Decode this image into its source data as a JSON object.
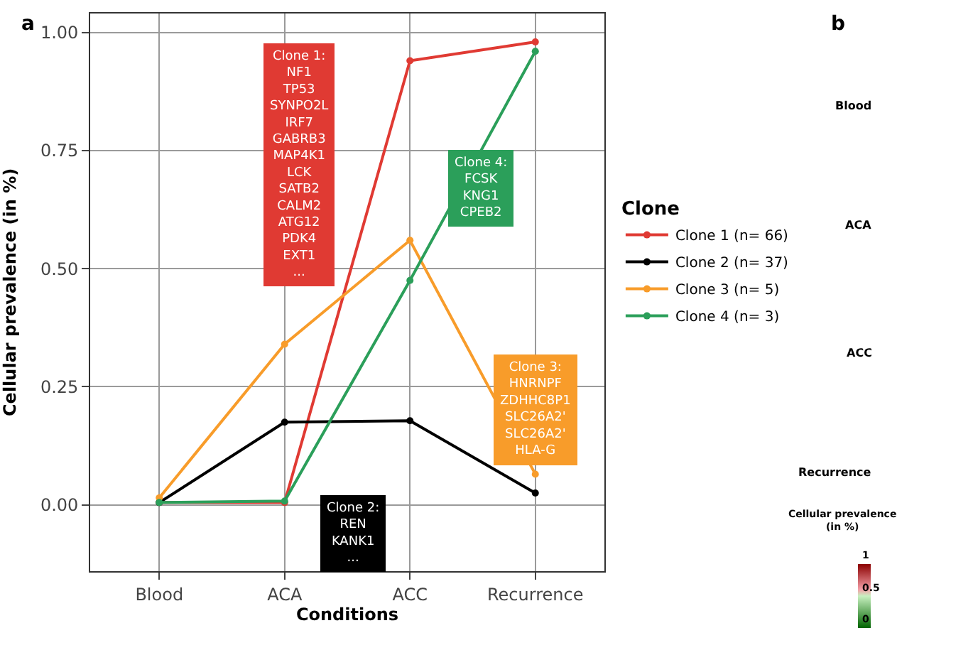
{
  "chart_data": [
    {
      "type": "line",
      "title": "a",
      "xlabel": "Conditions",
      "ylabel": "Cellular prevalence (in %)",
      "legend_title": "Clone",
      "categories": [
        "Blood",
        "ACA",
        "ACC",
        "Recurrence"
      ],
      "series": [
        {
          "name": "Clone 1 (n= 66)",
          "color": "#e03a33",
          "values": [
            0.005,
            0.005,
            0.94,
            0.98
          ]
        },
        {
          "name": "Clone 2 (n= 37)",
          "color": "#000000",
          "values": [
            0.005,
            0.175,
            0.178,
            0.025
          ]
        },
        {
          "name": "Clone 3 (n= 5)",
          "color": "#f89c2a",
          "values": [
            0.015,
            0.34,
            0.56,
            0.065
          ]
        },
        {
          "name": "Clone 4 (n= 3)",
          "color": "#2b9f5a",
          "values": [
            0.005,
            0.008,
            0.475,
            0.96
          ]
        }
      ],
      "annotations": [
        "Clone 1:\nNF1\nTP53\nSYNPO2L\nIRF7\nGABRB3\nMAP4K1\nLCK\nSATB2\nCALM2\nATG12\nPDK4\nEXT1\n...",
        "Clone 2:\nREN\nKANK1\n...",
        "Clone 3:\nHNRNPF\nZDHHC8P1\nSLC26A2'\nSLC26A2'\nHLA-G",
        "Clone 4:\nFCSK\nKNG1\nCPEB2"
      ],
      "ylim": [
        -0.14,
        1.04
      ],
      "yticks": [
        {
          "value": 0,
          "label": "0.00"
        },
        0.25,
        {
          "value": 0.5,
          "label": "0.50"
        },
        0.75,
        {
          "value": 1,
          "label": "1.00"
        }
      ],
      "grid": true,
      "legend": "right",
      "marker": "circle",
      "line_style": "solid"
    },
    {
      "type": "other",
      "title": "b",
      "annotations": [
        "Blood",
        "ACA",
        "ACC",
        "Recurrence",
        "Cellular prevalence\n(in %)",
        "1",
        "0.5",
        "0"
      ]
    }
  ]
}
